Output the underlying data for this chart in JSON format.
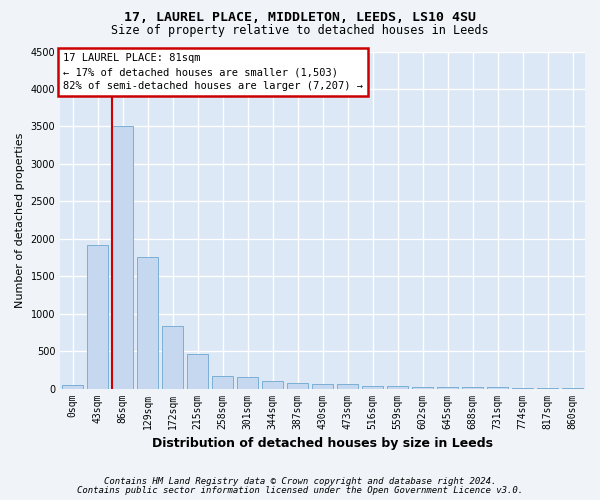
{
  "title1": "17, LAUREL PLACE, MIDDLETON, LEEDS, LS10 4SU",
  "title2": "Size of property relative to detached houses in Leeds",
  "xlabel": "Distribution of detached houses by size in Leeds",
  "ylabel": "Number of detached properties",
  "categories": [
    "0sqm",
    "43sqm",
    "86sqm",
    "129sqm",
    "172sqm",
    "215sqm",
    "258sqm",
    "301sqm",
    "344sqm",
    "387sqm",
    "430sqm",
    "473sqm",
    "516sqm",
    "559sqm",
    "602sqm",
    "645sqm",
    "688sqm",
    "731sqm",
    "774sqm",
    "817sqm",
    "860sqm"
  ],
  "bar_values": [
    50,
    1920,
    3500,
    1760,
    840,
    460,
    165,
    155,
    100,
    70,
    60,
    55,
    35,
    30,
    25,
    20,
    18,
    15,
    10,
    8,
    5
  ],
  "bar_color": "#c5d8f0",
  "bar_edge_color": "#7aafd4",
  "annotation_line1": "17 LAUREL PLACE: 81sqm",
  "annotation_line2": "← 17% of detached houses are smaller (1,503)",
  "annotation_line3": "82% of semi-detached houses are larger (7,207) →",
  "annotation_box_facecolor": "#ffffff",
  "annotation_box_edgecolor": "#cc0000",
  "vline_color": "#cc0000",
  "vline_x": 1.575,
  "ylim_min": 0,
  "ylim_max": 4500,
  "yticks": [
    0,
    500,
    1000,
    1500,
    2000,
    2500,
    3000,
    3500,
    4000,
    4500
  ],
  "footer1": "Contains HM Land Registry data © Crown copyright and database right 2024.",
  "footer2": "Contains public sector information licensed under the Open Government Licence v3.0.",
  "fig_facecolor": "#f0f4f8",
  "ax_facecolor": "#dce8f5",
  "grid_color": "#ffffff",
  "title1_fontsize": 9.5,
  "title2_fontsize": 8.5,
  "xlabel_fontsize": 9,
  "ylabel_fontsize": 8,
  "tick_fontsize": 7,
  "annot_fontsize": 7.5,
  "footer_fontsize": 6.5
}
